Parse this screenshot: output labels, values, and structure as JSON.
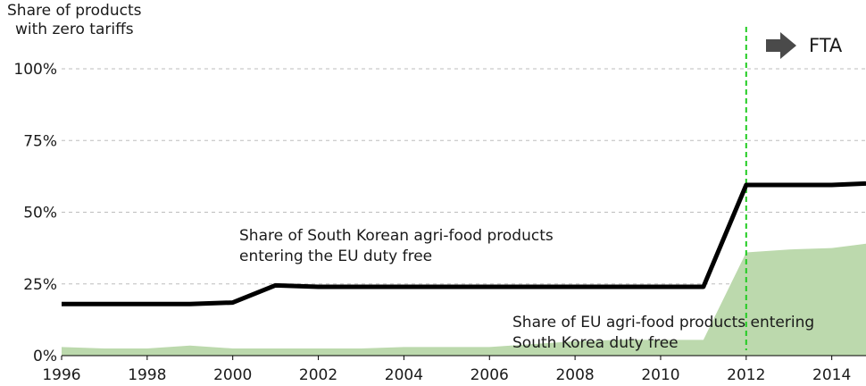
{
  "chart_data": {
    "type": "line",
    "ylabel_line1": "Share of products",
    "ylabel_line2": "with zero tariffs",
    "x_ticks": [
      1996,
      1998,
      2000,
      2002,
      2004,
      2006,
      2008,
      2010,
      2012,
      2014
    ],
    "y_ticks": [
      "0%",
      "25%",
      "50%",
      "75%",
      "100%"
    ],
    "xlim": [
      1996,
      2014.8
    ],
    "ylim": [
      0,
      100
    ],
    "grid": "horizontal dashed",
    "series": [
      {
        "name_line1": "Share of South Korean agri-food products",
        "name_line2": "entering the EU duty free",
        "color": "#000000",
        "style": "line",
        "x": [
          1996,
          1997,
          1998,
          1999,
          2000,
          2001,
          2002,
          2003,
          2004,
          2005,
          2006,
          2007,
          2008,
          2009,
          2010,
          2011,
          2012,
          2013,
          2014,
          2014.8
        ],
        "y": [
          18,
          18,
          18,
          18,
          18.5,
          24.5,
          24,
          24,
          24,
          24,
          24,
          24,
          24,
          24,
          24,
          24,
          59.5,
          59.5,
          59.5,
          60
        ]
      },
      {
        "name_line1": "Share of EU agri-food products entering",
        "name_line2": "South Korea duty free",
        "color": "#bcd9ad",
        "style": "area",
        "x": [
          1996,
          1997,
          1998,
          1999,
          2000,
          2001,
          2002,
          2003,
          2004,
          2005,
          2006,
          2007,
          2008,
          2009,
          2010,
          2011,
          2012,
          2013,
          2014,
          2014.8
        ],
        "y": [
          3,
          2.5,
          2.5,
          3.5,
          2.5,
          2.5,
          2.5,
          2.5,
          3,
          3,
          3,
          4,
          5,
          5.5,
          5.5,
          5.5,
          36,
          37,
          37.5,
          39
        ]
      }
    ],
    "fta_year": 2012,
    "fta_label": "FTA",
    "fta_line_color": "#22cc22"
  }
}
